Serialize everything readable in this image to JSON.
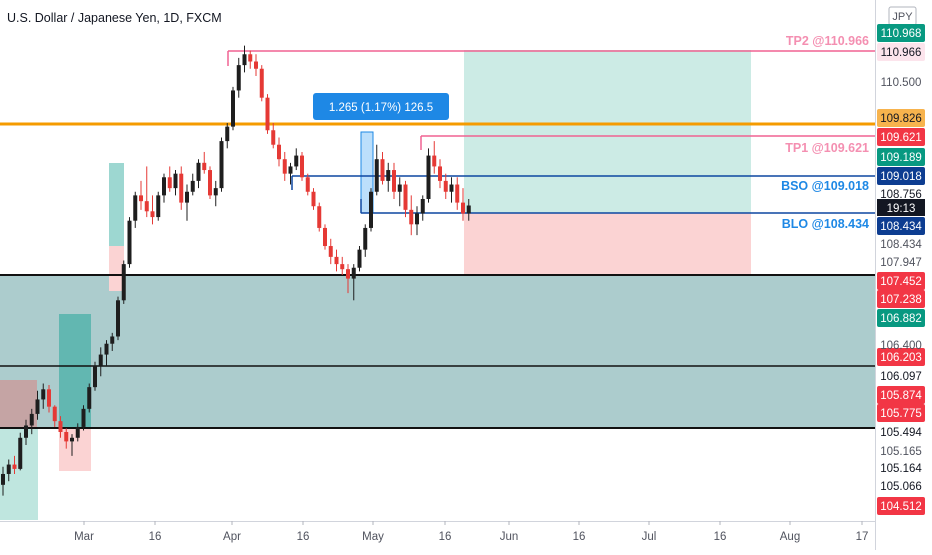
{
  "header": {
    "title": "U.S. Dollar / Japanese Yen, 1D, FXCM",
    "currency_label": "JPY"
  },
  "countdown": "19:13",
  "measure_tooltip": "1.265 (1.17%) 126.5",
  "level_labels": {
    "tp2": "TP2 @110.966",
    "tp1": "TP1 @109.621",
    "bso": "BSO @109.018",
    "blo": "BLO @108.434"
  },
  "colors": {
    "bull": "#26a69a",
    "bear": "#ef5350",
    "candle_body_bull": "#1e1e1e",
    "candle_body_bear": "#e53935",
    "orange_line": "#f59b00",
    "pink_line": "#f06292",
    "blue_line": "#0d47a1",
    "tp_text": "#f48fb1",
    "order_text": "#1e88e5",
    "zone_fill": "#5f9ea0",
    "profit_fill": "#bfe6df",
    "loss_fill": "#fbd3d3"
  },
  "chart_data": {
    "type": "candlestick",
    "symbol": "USDJPY",
    "interval": "1D",
    "source": "FXCM",
    "x_ticks": [
      "Mar",
      "16",
      "Apr",
      "16",
      "May",
      "16",
      "Jun",
      "16",
      "Jul",
      "16",
      "Aug",
      "17"
    ],
    "y_ticks": [
      "110.500",
      "106.400"
    ],
    "ylim": [
      104.4,
      111.6
    ],
    "price_tags": [
      {
        "value": "110.968",
        "style": "green"
      },
      {
        "value": "110.966",
        "style": "pink"
      },
      {
        "value": "109.826",
        "style": "orange"
      },
      {
        "value": "109.621",
        "style": "red"
      },
      {
        "value": "109.189",
        "style": "green"
      },
      {
        "value": "109.018",
        "style": "navy"
      },
      {
        "value": "108.756",
        "style": "light"
      },
      {
        "value": "108.434",
        "style": "navy"
      },
      {
        "value": "108.434",
        "style": "gray"
      },
      {
        "value": "107.947",
        "style": "gray"
      },
      {
        "value": "107.452",
        "style": "red"
      },
      {
        "value": "107.238",
        "style": "red"
      },
      {
        "value": "106.882",
        "style": "green"
      },
      {
        "value": "106.203",
        "style": "red"
      },
      {
        "value": "106.097",
        "style": "light"
      },
      {
        "value": "105.874",
        "style": "red"
      },
      {
        "value": "105.775",
        "style": "red"
      },
      {
        "value": "105.494",
        "style": "light"
      },
      {
        "value": "105.165",
        "style": "gray"
      },
      {
        "value": "105.164",
        "style": "light"
      },
      {
        "value": "105.066",
        "style": "light"
      },
      {
        "value": "104.512",
        "style": "red"
      }
    ],
    "levels": [
      {
        "name": "TP2",
        "price": 110.966
      },
      {
        "name": "Orange line",
        "price": 109.826
      },
      {
        "name": "TP1",
        "price": 109.621
      },
      {
        "name": "BSO",
        "price": 109.018
      },
      {
        "name": "BLO",
        "price": 108.434
      },
      {
        "name": "Zone top",
        "price": 107.452
      },
      {
        "name": "Zone mid",
        "price": 106.097
      },
      {
        "name": "Zone bottom",
        "price": 105.494
      }
    ],
    "candles": [
      [
        104.9,
        105.15,
        104.75,
        105.05
      ],
      [
        105.05,
        105.25,
        104.95,
        105.18
      ],
      [
        105.18,
        105.3,
        105.05,
        105.12
      ],
      [
        105.12,
        105.62,
        105.1,
        105.55
      ],
      [
        105.55,
        105.8,
        105.45,
        105.72
      ],
      [
        105.72,
        105.95,
        105.6,
        105.88
      ],
      [
        105.88,
        106.2,
        105.8,
        106.08
      ],
      [
        106.08,
        106.3,
        105.95,
        106.22
      ],
      [
        106.22,
        106.28,
        105.9,
        105.98
      ],
      [
        105.98,
        106.0,
        105.7,
        105.78
      ],
      [
        105.78,
        105.85,
        105.55,
        105.63
      ],
      [
        105.63,
        105.68,
        105.4,
        105.5
      ],
      [
        105.5,
        105.6,
        105.3,
        105.55
      ],
      [
        105.55,
        105.75,
        105.5,
        105.7
      ],
      [
        105.7,
        106.0,
        105.65,
        105.95
      ],
      [
        105.95,
        106.3,
        105.9,
        106.25
      ],
      [
        106.25,
        106.6,
        106.2,
        106.55
      ],
      [
        106.55,
        106.8,
        106.4,
        106.7
      ],
      [
        106.7,
        106.9,
        106.55,
        106.85
      ],
      [
        106.85,
        107.0,
        106.75,
        106.95
      ],
      [
        106.95,
        107.5,
        106.9,
        107.45
      ],
      [
        107.45,
        108.0,
        107.4,
        107.95
      ],
      [
        107.95,
        108.6,
        107.9,
        108.55
      ],
      [
        108.55,
        108.95,
        108.45,
        108.9
      ],
      [
        108.9,
        109.1,
        108.7,
        108.82
      ],
      [
        108.82,
        109.3,
        108.6,
        108.68
      ],
      [
        108.68,
        108.9,
        108.5,
        108.6
      ],
      [
        108.6,
        108.95,
        108.55,
        108.9
      ],
      [
        108.9,
        109.2,
        108.8,
        109.15
      ],
      [
        109.15,
        109.3,
        108.95,
        109.0
      ],
      [
        109.0,
        109.25,
        108.9,
        109.2
      ],
      [
        109.2,
        109.3,
        108.7,
        108.8
      ],
      [
        108.8,
        109.05,
        108.55,
        108.95
      ],
      [
        108.95,
        109.2,
        108.9,
        109.1
      ],
      [
        109.1,
        109.4,
        109.0,
        109.35
      ],
      [
        109.35,
        109.5,
        109.2,
        109.25
      ],
      [
        109.25,
        109.3,
        108.85,
        108.9
      ],
      [
        108.9,
        109.1,
        108.75,
        109.0
      ],
      [
        109.0,
        109.7,
        108.95,
        109.65
      ],
      [
        109.65,
        109.9,
        109.55,
        109.85
      ],
      [
        109.85,
        110.4,
        109.8,
        110.35
      ],
      [
        110.35,
        110.8,
        110.25,
        110.7
      ],
      [
        110.7,
        110.97,
        110.6,
        110.85
      ],
      [
        110.85,
        110.9,
        110.65,
        110.75
      ],
      [
        110.75,
        110.85,
        110.55,
        110.65
      ],
      [
        110.65,
        110.7,
        110.2,
        110.25
      ],
      [
        110.25,
        110.3,
        109.75,
        109.8
      ],
      [
        109.8,
        109.9,
        109.55,
        109.6
      ],
      [
        109.6,
        109.7,
        109.3,
        109.4
      ],
      [
        109.4,
        109.5,
        109.1,
        109.2
      ],
      [
        109.2,
        109.35,
        109.05,
        109.3
      ],
      [
        109.3,
        109.55,
        109.25,
        109.45
      ],
      [
        109.45,
        109.5,
        109.1,
        109.15
      ],
      [
        109.15,
        109.2,
        108.9,
        108.95
      ],
      [
        108.95,
        109.0,
        108.7,
        108.75
      ],
      [
        108.75,
        108.8,
        108.4,
        108.45
      ],
      [
        108.45,
        108.5,
        108.15,
        108.2
      ],
      [
        108.2,
        108.3,
        107.95,
        108.05
      ],
      [
        108.05,
        108.15,
        107.85,
        107.95
      ],
      [
        107.95,
        108.05,
        107.8,
        107.88
      ],
      [
        107.88,
        107.95,
        107.55,
        107.75
      ],
      [
        107.75,
        107.95,
        107.45,
        107.9
      ],
      [
        107.9,
        108.2,
        107.85,
        108.15
      ],
      [
        108.15,
        108.5,
        108.05,
        108.45
      ],
      [
        108.45,
        109.0,
        108.4,
        108.95
      ],
      [
        108.95,
        109.6,
        108.9,
        109.4
      ],
      [
        109.4,
        109.5,
        109.05,
        109.1
      ],
      [
        109.1,
        109.35,
        108.95,
        109.25
      ],
      [
        109.25,
        109.35,
        108.85,
        108.95
      ],
      [
        108.95,
        109.15,
        108.75,
        109.05
      ],
      [
        109.05,
        109.1,
        108.6,
        108.7
      ],
      [
        108.7,
        108.9,
        108.35,
        108.5
      ],
      [
        108.5,
        108.75,
        108.35,
        108.65
      ],
      [
        108.65,
        108.9,
        108.55,
        108.85
      ],
      [
        108.85,
        109.55,
        108.8,
        109.45
      ],
      [
        109.45,
        109.65,
        109.2,
        109.3
      ],
      [
        109.3,
        109.4,
        109.0,
        109.1
      ],
      [
        109.1,
        109.2,
        108.85,
        108.95
      ],
      [
        108.95,
        109.15,
        108.8,
        109.05
      ],
      [
        109.05,
        109.15,
        108.7,
        108.8
      ],
      [
        108.8,
        109.0,
        108.55,
        108.65
      ],
      [
        108.65,
        108.85,
        108.55,
        108.76
      ]
    ]
  }
}
